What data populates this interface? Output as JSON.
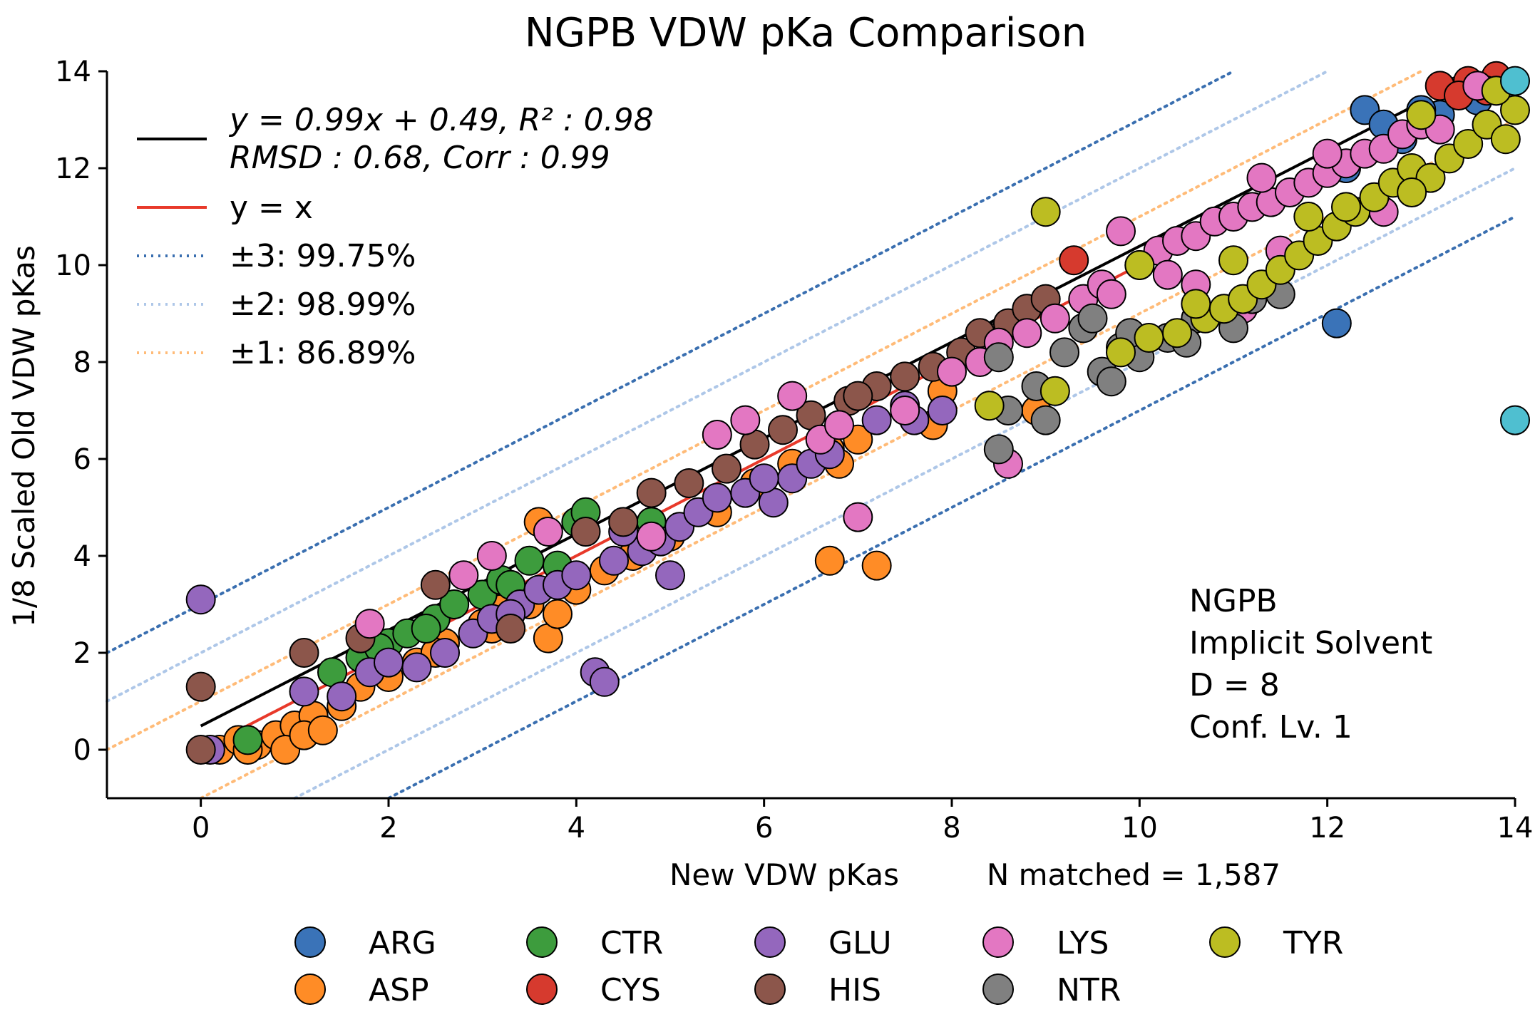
{
  "chart_data": {
    "type": "scatter",
    "title": "NGPB VDW pKa Comparison",
    "xlabel": "New VDW pKas",
    "ylabel": "1/8 Scaled Old VDW pKas",
    "n_matched_label": "N matched = 1,587",
    "xlim": [
      -1,
      14
    ],
    "ylim": [
      -1,
      14
    ],
    "xticks": [
      0,
      2,
      4,
      6,
      8,
      10,
      12,
      14
    ],
    "yticks": [
      0,
      2,
      4,
      6,
      8,
      10,
      12,
      14
    ],
    "fit": {
      "slope": 0.99,
      "intercept": 0.49,
      "x_range": [
        0,
        13
      ],
      "label_line1": "y = 0.99x + 0.49, R² : 0.98",
      "label_line2": "RMSD : 0.68, Corr : 0.99"
    },
    "identity": {
      "label": "y = x",
      "x_range": [
        0,
        13
      ]
    },
    "bands": [
      {
        "offset": 3,
        "label": "±3:   99.75%",
        "color": "#3a6fb0"
      },
      {
        "offset": 2,
        "label": "±2:   98.99%",
        "color": "#aec7e8"
      },
      {
        "offset": 1,
        "label": "±1:   86.89%",
        "color": "#ffbb78"
      }
    ],
    "annotation": [
      "NGPB",
      "Implicit Solvent",
      "D = 8",
      "Conf. Lv. 1"
    ],
    "series": [
      {
        "name": "ARG",
        "color": "#3a73b8",
        "points": [
          [
            12.4,
            13.2
          ],
          [
            12.1,
            8.8
          ],
          [
            13.2,
            13.1
          ],
          [
            13.6,
            13.4
          ],
          [
            13.8,
            13.6
          ],
          [
            12.6,
            12.9
          ],
          [
            13.0,
            13.2
          ],
          [
            12.2,
            12.0
          ],
          [
            13.4,
            13.6
          ],
          [
            12.8,
            12.6
          ]
        ]
      },
      {
        "name": "ASP",
        "color": "#ff8c26",
        "points": [
          [
            0.2,
            0.0
          ],
          [
            0.4,
            0.2
          ],
          [
            0.6,
            0.1
          ],
          [
            0.8,
            0.3
          ],
          [
            1.0,
            0.5
          ],
          [
            0.9,
            0.0
          ],
          [
            1.2,
            0.7
          ],
          [
            1.5,
            0.9
          ],
          [
            1.7,
            1.3
          ],
          [
            2.0,
            1.5
          ],
          [
            2.3,
            1.8
          ],
          [
            2.6,
            2.2
          ],
          [
            3.0,
            2.6
          ],
          [
            3.2,
            2.9
          ],
          [
            3.5,
            3.0
          ],
          [
            3.7,
            2.3
          ],
          [
            3.8,
            2.8
          ],
          [
            3.6,
            4.7
          ],
          [
            4.0,
            3.3
          ],
          [
            4.3,
            3.7
          ],
          [
            4.6,
            4.0
          ],
          [
            5.0,
            4.4
          ],
          [
            5.5,
            4.9
          ],
          [
            5.9,
            5.5
          ],
          [
            6.3,
            5.9
          ],
          [
            6.7,
            6.2
          ],
          [
            6.8,
            5.9
          ],
          [
            7.0,
            6.4
          ],
          [
            6.7,
            3.9
          ],
          [
            7.2,
            3.8
          ],
          [
            7.8,
            6.7
          ],
          [
            7.9,
            7.4
          ],
          [
            8.9,
            7.0
          ],
          [
            1.1,
            0.3
          ],
          [
            0.5,
            0.0
          ],
          [
            1.3,
            0.4
          ],
          [
            2.5,
            2.0
          ],
          [
            3.1,
            2.5
          ]
        ]
      },
      {
        "name": "CTR",
        "color": "#3d9c3d",
        "points": [
          [
            0.5,
            0.2
          ],
          [
            1.4,
            1.6
          ],
          [
            1.7,
            1.9
          ],
          [
            2.0,
            2.2
          ],
          [
            2.2,
            2.4
          ],
          [
            2.5,
            2.7
          ],
          [
            2.7,
            3.0
          ],
          [
            3.0,
            3.2
          ],
          [
            3.2,
            3.5
          ],
          [
            3.5,
            3.9
          ],
          [
            3.8,
            3.8
          ],
          [
            4.0,
            4.7
          ],
          [
            4.1,
            4.9
          ],
          [
            4.8,
            4.7
          ],
          [
            1.9,
            2.1
          ],
          [
            2.4,
            2.5
          ],
          [
            3.3,
            3.4
          ]
        ]
      },
      {
        "name": "CYS",
        "color": "#d63a2e",
        "points": [
          [
            9.3,
            10.1
          ],
          [
            13.2,
            13.7
          ],
          [
            13.5,
            13.8
          ],
          [
            13.8,
            13.9
          ],
          [
            13.4,
            13.5
          ],
          [
            13.7,
            13.6
          ]
        ]
      },
      {
        "name": "GLU",
        "color": "#9467bd",
        "points": [
          [
            0.0,
            3.1
          ],
          [
            0.1,
            0.0
          ],
          [
            1.1,
            1.2
          ],
          [
            1.5,
            1.1
          ],
          [
            1.8,
            1.6
          ],
          [
            2.0,
            1.8
          ],
          [
            2.3,
            1.7
          ],
          [
            2.6,
            2.0
          ],
          [
            2.9,
            2.4
          ],
          [
            3.1,
            2.7
          ],
          [
            3.4,
            3.0
          ],
          [
            3.6,
            3.3
          ],
          [
            3.8,
            3.4
          ],
          [
            4.0,
            3.6
          ],
          [
            4.2,
            1.6
          ],
          [
            4.3,
            1.4
          ],
          [
            4.4,
            3.9
          ],
          [
            4.7,
            4.1
          ],
          [
            4.9,
            4.3
          ],
          [
            5.1,
            4.6
          ],
          [
            5.3,
            4.9
          ],
          [
            5.5,
            5.2
          ],
          [
            5.8,
            5.3
          ],
          [
            6.1,
            5.1
          ],
          [
            6.3,
            5.6
          ],
          [
            6.5,
            5.9
          ],
          [
            6.7,
            6.1
          ],
          [
            7.2,
            6.8
          ],
          [
            7.5,
            7.1
          ],
          [
            7.6,
            6.8
          ],
          [
            7.9,
            7.0
          ],
          [
            5.0,
            3.6
          ],
          [
            3.3,
            2.8
          ],
          [
            4.5,
            4.5
          ],
          [
            6.0,
            5.6
          ]
        ]
      },
      {
        "name": "HIS",
        "color": "#8c564b",
        "points": [
          [
            0.0,
            0.0
          ],
          [
            0.0,
            1.3
          ],
          [
            1.1,
            2.0
          ],
          [
            1.7,
            2.3
          ],
          [
            2.5,
            3.4
          ],
          [
            3.3,
            2.5
          ],
          [
            4.1,
            4.5
          ],
          [
            4.5,
            4.7
          ],
          [
            4.8,
            5.3
          ],
          [
            5.2,
            5.5
          ],
          [
            5.6,
            5.8
          ],
          [
            5.9,
            6.3
          ],
          [
            6.2,
            6.6
          ],
          [
            6.5,
            6.9
          ],
          [
            6.9,
            7.2
          ],
          [
            7.2,
            7.5
          ],
          [
            7.5,
            7.7
          ],
          [
            7.8,
            7.9
          ],
          [
            8.1,
            8.2
          ],
          [
            8.4,
            8.5
          ],
          [
            8.6,
            8.8
          ],
          [
            8.8,
            9.1
          ],
          [
            9.0,
            9.3
          ],
          [
            7.0,
            7.3
          ],
          [
            8.3,
            8.6
          ]
        ]
      },
      {
        "name": "LYS",
        "color": "#e377c2",
        "points": [
          [
            1.8,
            2.6
          ],
          [
            2.8,
            3.6
          ],
          [
            3.1,
            4.0
          ],
          [
            3.7,
            4.5
          ],
          [
            4.8,
            4.4
          ],
          [
            5.5,
            6.5
          ],
          [
            5.8,
            6.8
          ],
          [
            6.3,
            7.3
          ],
          [
            6.6,
            6.4
          ],
          [
            6.8,
            6.7
          ],
          [
            7.0,
            4.8
          ],
          [
            7.5,
            7.0
          ],
          [
            8.0,
            7.8
          ],
          [
            8.3,
            8.0
          ],
          [
            8.5,
            8.4
          ],
          [
            8.6,
            5.9
          ],
          [
            8.8,
            8.6
          ],
          [
            9.1,
            8.9
          ],
          [
            9.4,
            9.3
          ],
          [
            9.6,
            9.6
          ],
          [
            9.8,
            10.7
          ],
          [
            10.0,
            10.0
          ],
          [
            10.2,
            10.3
          ],
          [
            10.4,
            10.5
          ],
          [
            10.6,
            10.6
          ],
          [
            10.8,
            10.9
          ],
          [
            11.0,
            11.0
          ],
          [
            11.2,
            11.2
          ],
          [
            11.4,
            11.3
          ],
          [
            11.6,
            11.5
          ],
          [
            11.8,
            11.7
          ],
          [
            12.0,
            11.9
          ],
          [
            12.2,
            12.1
          ],
          [
            12.4,
            12.3
          ],
          [
            12.6,
            12.4
          ],
          [
            12.8,
            12.7
          ],
          [
            13.0,
            12.9
          ],
          [
            13.2,
            12.8
          ],
          [
            13.6,
            13.7
          ],
          [
            11.1,
            9.1
          ],
          [
            10.6,
            9.6
          ],
          [
            9.7,
            9.4
          ],
          [
            12.6,
            11.1
          ],
          [
            11.5,
            10.3
          ],
          [
            10.3,
            9.8
          ],
          [
            11.3,
            11.8
          ],
          [
            12.0,
            12.3
          ]
        ]
      },
      {
        "name": "NTR",
        "color": "#808080",
        "points": [
          [
            8.5,
            6.2
          ],
          [
            8.5,
            8.1
          ],
          [
            8.6,
            7.0
          ],
          [
            8.9,
            7.5
          ],
          [
            9.0,
            6.8
          ],
          [
            9.2,
            8.2
          ],
          [
            9.4,
            8.7
          ],
          [
            9.6,
            7.8
          ],
          [
            9.7,
            7.6
          ],
          [
            9.8,
            8.3
          ],
          [
            10.0,
            8.1
          ],
          [
            10.3,
            8.5
          ],
          [
            10.6,
            8.9
          ],
          [
            11.0,
            8.7
          ],
          [
            11.2,
            9.3
          ],
          [
            11.5,
            9.4
          ],
          [
            9.5,
            8.9
          ],
          [
            9.9,
            8.6
          ],
          [
            10.5,
            8.4
          ]
        ]
      },
      {
        "name": "TYR",
        "color": "#bcbd22",
        "points": [
          [
            8.4,
            7.1
          ],
          [
            9.0,
            11.1
          ],
          [
            9.1,
            7.4
          ],
          [
            9.8,
            8.2
          ],
          [
            10.0,
            10.0
          ],
          [
            10.1,
            8.5
          ],
          [
            10.4,
            8.6
          ],
          [
            10.7,
            8.9
          ],
          [
            10.9,
            9.1
          ],
          [
            11.1,
            9.3
          ],
          [
            11.3,
            9.6
          ],
          [
            11.5,
            9.9
          ],
          [
            11.7,
            10.2
          ],
          [
            11.9,
            10.5
          ],
          [
            12.1,
            10.8
          ],
          [
            12.3,
            11.1
          ],
          [
            12.5,
            11.4
          ],
          [
            12.7,
            11.7
          ],
          [
            12.9,
            12.0
          ],
          [
            13.1,
            11.8
          ],
          [
            13.3,
            12.2
          ],
          [
            13.5,
            12.5
          ],
          [
            13.7,
            12.9
          ],
          [
            13.9,
            12.6
          ],
          [
            14.0,
            13.2
          ],
          [
            13.0,
            13.1
          ],
          [
            12.2,
            11.2
          ],
          [
            11.8,
            11.0
          ],
          [
            11.0,
            10.1
          ],
          [
            10.6,
            9.2
          ],
          [
            13.8,
            13.6
          ],
          [
            12.9,
            11.5
          ]
        ]
      }
    ],
    "outliers_cyan": {
      "color": "#4fbfd0",
      "points": [
        [
          14.0,
          6.8
        ],
        [
          14.0,
          13.8
        ]
      ]
    },
    "legend": {
      "position": "bottom",
      "columns": 5
    }
  }
}
